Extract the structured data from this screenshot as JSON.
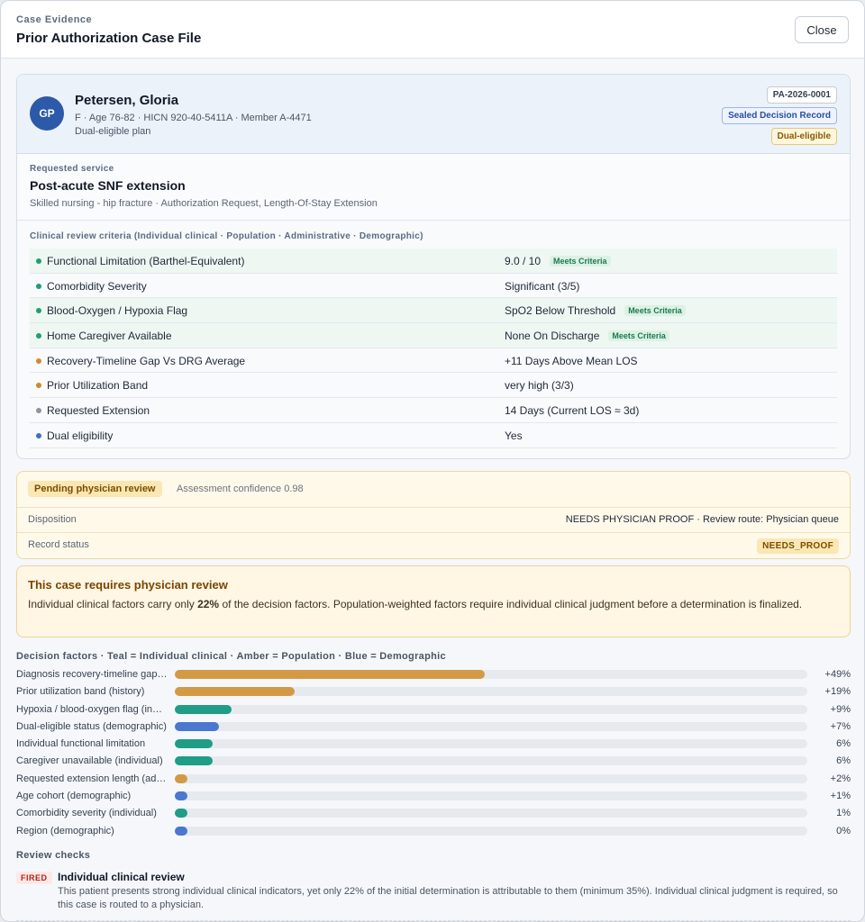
{
  "header": {
    "eyebrow": "Case Evidence",
    "title": "Prior Authorization Case File",
    "close_label": "Close"
  },
  "patient": {
    "initials": "GP",
    "name": "Petersen, Gloria",
    "meta": "F · Age 76-82 · HICN 920-40-5411A · Member A-4471",
    "plan": "Dual-eligible plan",
    "case_id": "PA-2026-0001",
    "sealed_label": "Sealed Decision Record",
    "dual_label": "Dual-eligible"
  },
  "service": {
    "label": "Requested service",
    "title": "Post-acute SNF extension",
    "subtitle": "Skilled nursing - hip fracture · Authorization Request, Length-Of-Stay Extension"
  },
  "criteria": {
    "title": "Clinical review criteria (Individual clinical · Population · Administrative · Demographic)",
    "met_tag": "Meets Criteria",
    "colors": {
      "individual": "#1f9d78",
      "population": "#d08a2e",
      "administrative": "#8a94a3",
      "demographic": "#3f6fc7"
    },
    "rows": [
      {
        "label": "Functional Limitation (Barthel-Equivalent)",
        "value": "9.0 / 10",
        "type": "individual",
        "met": true
      },
      {
        "label": "Comorbidity Severity",
        "value": "Significant (3/5)",
        "type": "individual",
        "met": false
      },
      {
        "label": "Blood-Oxygen / Hypoxia Flag",
        "value": "SpO2 Below Threshold",
        "type": "individual",
        "met": true
      },
      {
        "label": "Home Caregiver Available",
        "value": "None On Discharge",
        "type": "individual",
        "met": true
      },
      {
        "label": "Recovery-Timeline Gap Vs DRG Average",
        "value": "+11 Days Above Mean LOS",
        "type": "population",
        "met": false
      },
      {
        "label": "Prior Utilization Band",
        "value": "very high (3/3)",
        "type": "population",
        "met": false
      },
      {
        "label": "Requested Extension",
        "value": "14 Days (Current LOS ≈ 3d)",
        "type": "administrative",
        "met": false
      },
      {
        "label": "Dual eligibility",
        "value": "Yes",
        "type": "demographic",
        "met": false
      }
    ]
  },
  "status": {
    "pending_label": "Pending physician review",
    "confidence": "Assessment confidence 0.98",
    "disposition_key": "Disposition",
    "disposition_value": "NEEDS PHYSICIAN PROOF · Review route: Physician queue",
    "record_key": "Record status",
    "record_value": "NEEDS_PROOF"
  },
  "alert": {
    "title": "This case requires physician review",
    "body_pre": "Individual clinical factors carry only ",
    "body_pct": "22%",
    "body_post": " of the decision factors. Population-weighted factors require individual clinical judgment before a determination is finalized."
  },
  "factors": {
    "title": "Decision factors · Teal = Individual clinical · Amber = Population · Blue = Demographic",
    "colors": {
      "individual": "#1f9d86",
      "population": "#d39a45",
      "demographic": "#4a77cf"
    },
    "items": [
      {
        "label": "Diagnosis recovery-timeline gap (population)",
        "display": "+49%",
        "value": 49,
        "type": "population"
      },
      {
        "label": "Prior utilization band (history)",
        "display": "+19%",
        "value": 19,
        "type": "population"
      },
      {
        "label": "Hypoxia / blood-oxygen flag (individual)",
        "display": "+9%",
        "value": 9,
        "type": "individual"
      },
      {
        "label": "Dual-eligible status (demographic)",
        "display": "+7%",
        "value": 7,
        "type": "demographic"
      },
      {
        "label": "Individual functional limitation",
        "display": "6%",
        "value": 6,
        "type": "individual"
      },
      {
        "label": "Caregiver unavailable (individual)",
        "display": "6%",
        "value": 6,
        "type": "individual"
      },
      {
        "label": "Requested extension length (administrative)",
        "display": "+2%",
        "value": 2,
        "type": "population"
      },
      {
        "label": "Age cohort (demographic)",
        "display": "+1%",
        "value": 1,
        "type": "demographic"
      },
      {
        "label": "Comorbidity severity (individual)",
        "display": "1%",
        "value": 1,
        "type": "individual"
      },
      {
        "label": "Region (demographic)",
        "display": "0%",
        "value": 0,
        "type": "demographic"
      }
    ]
  },
  "checks": {
    "title": "Review checks",
    "items": [
      {
        "status": "FIRED",
        "title": "Individual clinical review",
        "body": "This patient presents strong individual clinical indicators, yet only 22% of the initial determination is attributable to them (minimum 35%). Individual clinical judgment is required, so this case is routed to a physician."
      }
    ]
  }
}
